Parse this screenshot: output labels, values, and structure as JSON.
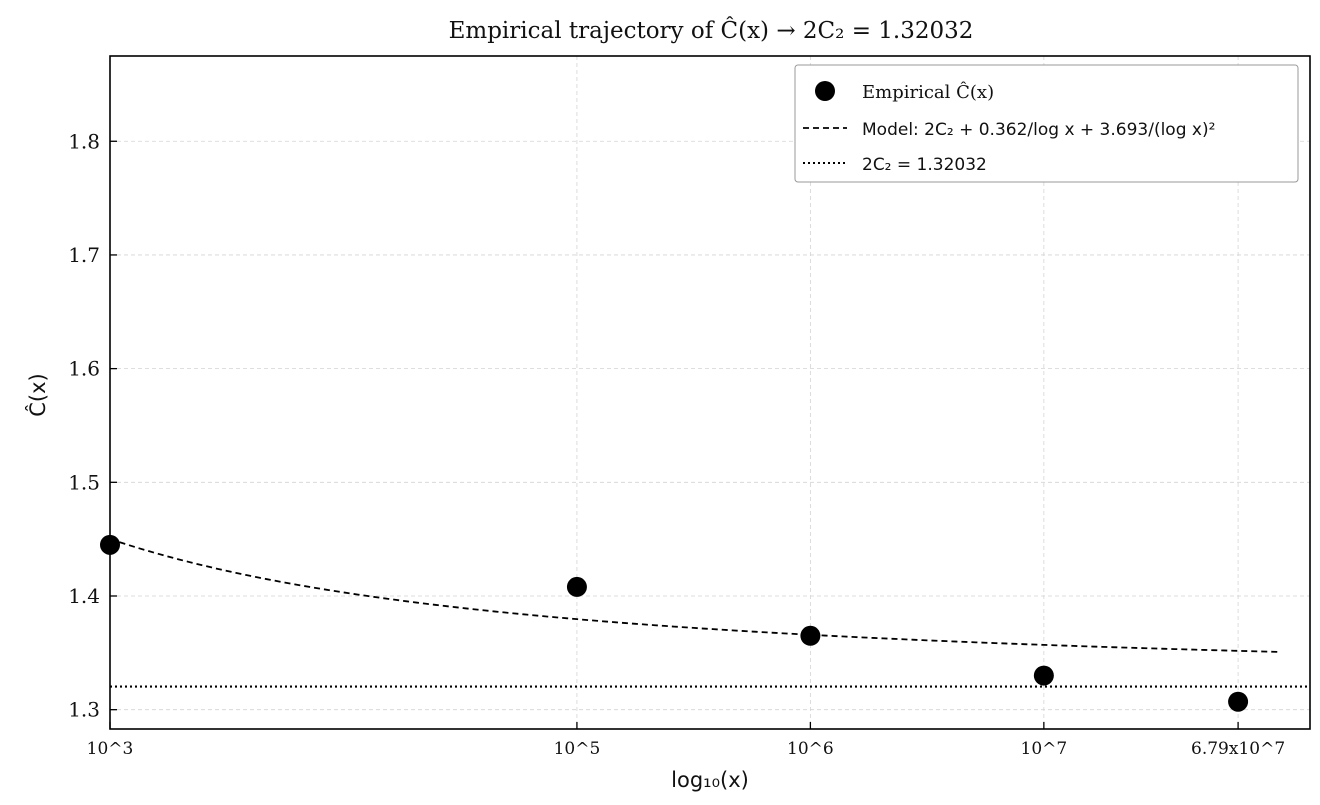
{
  "chart_data": {
    "type": "scatter",
    "title": "Empirical trajectory of Ĉ(x) → 2C₂ = 1.32032",
    "xlabel": "log₁₀(x)",
    "ylabel": "Ĉ(x)",
    "x_scale": "log10",
    "xlim": [
      3.0,
      8.14
    ],
    "ylim": [
      1.283,
      1.875
    ],
    "x_ticks": [
      {
        "value": 3,
        "label": "10^3"
      },
      {
        "value": 5,
        "label": "10^5"
      },
      {
        "value": 6,
        "label": "10^6"
      },
      {
        "value": 7,
        "label": "10^7"
      },
      {
        "value": 7.832,
        "label": "6.79x10^7"
      }
    ],
    "y_ticks": [
      {
        "value": 1.3,
        "label": "1.3"
      },
      {
        "value": 1.4,
        "label": "1.4"
      },
      {
        "value": 1.5,
        "label": "1.5"
      },
      {
        "value": 1.6,
        "label": "1.6"
      },
      {
        "value": 1.7,
        "label": "1.7"
      },
      {
        "value": 1.8,
        "label": "1.8"
      }
    ],
    "grid": true,
    "legend_position": "top-right",
    "series": [
      {
        "name": "Empirical Ĉ(x)",
        "kind": "scatter",
        "color": "#000000",
        "x": [
          3,
          5,
          6,
          7,
          7.832
        ],
        "y": [
          1.445,
          1.408,
          1.365,
          1.33,
          1.307
        ]
      },
      {
        "name": "Model: 2C₂ + 0.362/log x + 3.693/(log x)²",
        "kind": "line",
        "style": "dashed",
        "color": "#000000",
        "model": {
          "constant": 1.32032,
          "a": 0.362,
          "b": 3.693
        },
        "x_range": [
          3,
          8.0
        ]
      },
      {
        "name": "2C₂ = 1.32032",
        "kind": "hline",
        "style": "dotted",
        "color": "#000000",
        "y": 1.32032
      }
    ]
  }
}
